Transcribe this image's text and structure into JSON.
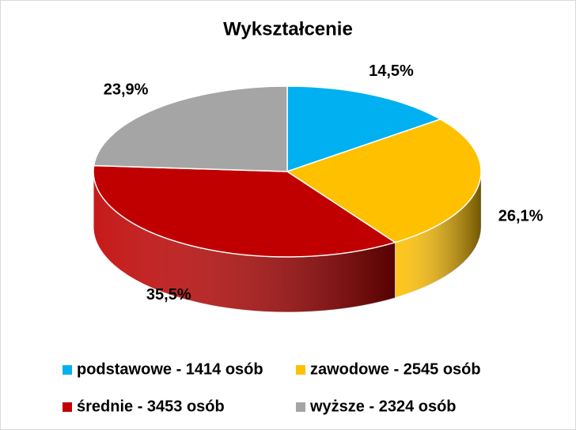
{
  "chart_data": {
    "type": "pie",
    "title": "Wykształcenie",
    "categories": [
      "podstawowe - 1414 osób",
      "zawodowe - 2545 osób",
      "średnie - 3453 osób",
      "wyższe - 2324 osób"
    ],
    "values": [
      14.5,
      26.1,
      35.5,
      23.9
    ],
    "value_labels": [
      "14,5%",
      "26,1%",
      "35,5%",
      "23,9%"
    ],
    "colors": [
      "#00b0f0",
      "#ffc000",
      "#c00000",
      "#a5a5a5"
    ],
    "legend": "bottom"
  }
}
